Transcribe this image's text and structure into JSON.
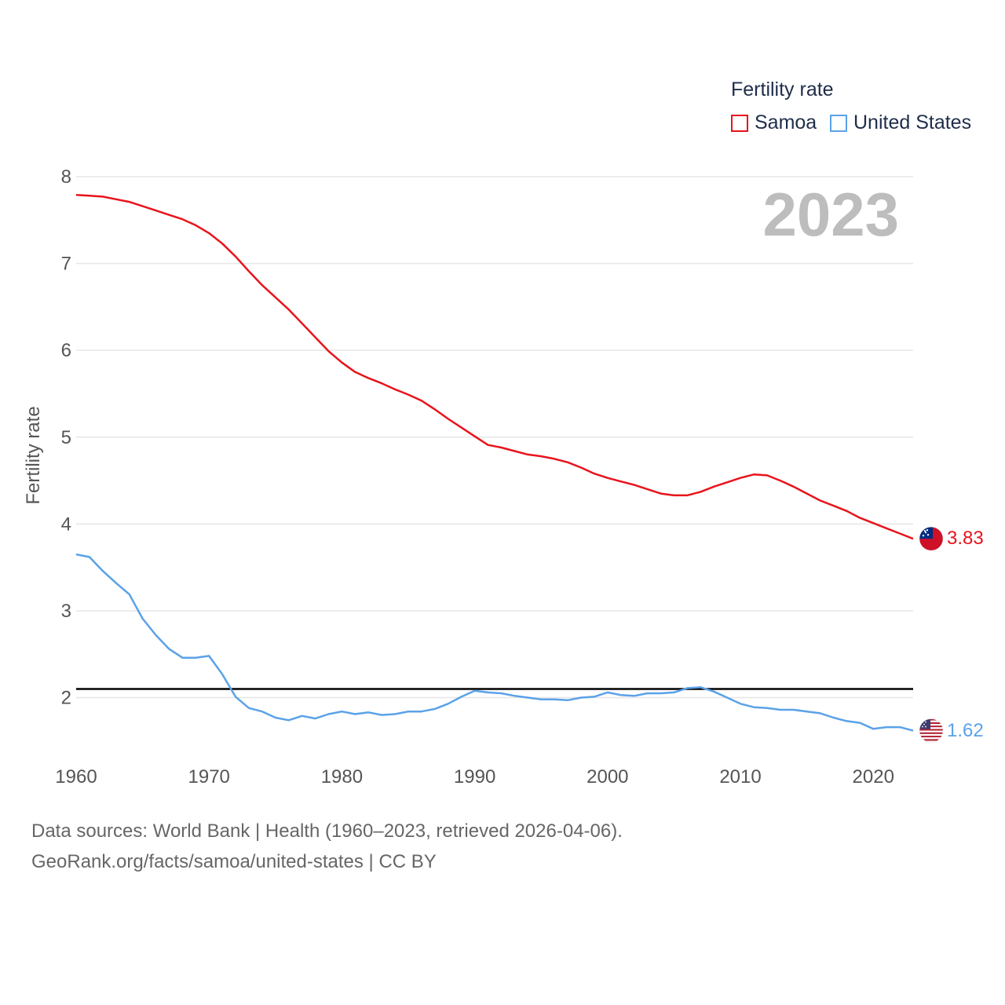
{
  "chart_data": {
    "type": "line",
    "title": "",
    "legend_title": "Fertility rate",
    "legend_position": "top-right",
    "xlabel": "",
    "ylabel": "Fertility rate",
    "xlim": [
      1960,
      2023
    ],
    "ylim": [
      1.2,
      8.0
    ],
    "xticks": [
      1960,
      1970,
      1980,
      1990,
      2000,
      2010,
      2020
    ],
    "yticks": [
      2,
      3,
      4,
      5,
      6,
      7,
      8
    ],
    "grid": true,
    "year_label": "2023",
    "reference_line": {
      "y": 2.1,
      "color": "#000000"
    },
    "x": [
      1960,
      1961,
      1962,
      1963,
      1964,
      1965,
      1966,
      1967,
      1968,
      1969,
      1970,
      1971,
      1972,
      1973,
      1974,
      1975,
      1976,
      1977,
      1978,
      1979,
      1980,
      1981,
      1982,
      1983,
      1984,
      1985,
      1986,
      1987,
      1988,
      1989,
      1990,
      1991,
      1992,
      1993,
      1994,
      1995,
      1996,
      1997,
      1998,
      1999,
      2000,
      2001,
      2002,
      2003,
      2004,
      2005,
      2006,
      2007,
      2008,
      2009,
      2010,
      2011,
      2012,
      2013,
      2014,
      2015,
      2016,
      2017,
      2018,
      2019,
      2020,
      2021,
      2022,
      2023
    ],
    "series": [
      {
        "name": "Samoa",
        "color": "#e8141c",
        "end_label": "3.83",
        "flag": "samoa-flag-icon",
        "values": [
          7.79,
          7.78,
          7.77,
          7.74,
          7.71,
          7.66,
          7.61,
          7.56,
          7.51,
          7.44,
          7.35,
          7.23,
          7.08,
          6.91,
          6.75,
          6.61,
          6.47,
          6.31,
          6.15,
          5.99,
          5.86,
          5.75,
          5.68,
          5.62,
          5.55,
          5.49,
          5.42,
          5.32,
          5.21,
          5.11,
          5.01,
          4.91,
          4.88,
          4.84,
          4.8,
          4.78,
          4.75,
          4.71,
          4.65,
          4.58,
          4.53,
          4.49,
          4.45,
          4.4,
          4.35,
          4.33,
          4.33,
          4.37,
          4.43,
          4.48,
          4.53,
          4.57,
          4.56,
          4.5,
          4.43,
          4.35,
          4.27,
          4.21,
          4.15,
          4.07,
          4.01,
          3.95,
          3.89,
          3.83
        ]
      },
      {
        "name": "United States",
        "color": "#5aa2e8",
        "end_label": "1.62",
        "flag": "us-flag-icon",
        "values": [
          3.65,
          3.62,
          3.46,
          3.32,
          3.19,
          2.91,
          2.72,
          2.56,
          2.46,
          2.46,
          2.48,
          2.27,
          2.01,
          1.88,
          1.84,
          1.77,
          1.74,
          1.79,
          1.76,
          1.81,
          1.84,
          1.81,
          1.83,
          1.8,
          1.81,
          1.84,
          1.84,
          1.87,
          1.93,
          2.01,
          2.08,
          2.06,
          2.05,
          2.02,
          2.0,
          1.98,
          1.98,
          1.97,
          2.0,
          2.01,
          2.06,
          2.03,
          2.02,
          2.05,
          2.05,
          2.06,
          2.11,
          2.12,
          2.07,
          2.0,
          1.93,
          1.89,
          1.88,
          1.86,
          1.86,
          1.84,
          1.82,
          1.77,
          1.73,
          1.71,
          1.64,
          1.66,
          1.66,
          1.62
        ]
      }
    ]
  },
  "footer": {
    "line1": "Data sources: World Bank | Health (1960–2023, retrieved 2026-04-06).",
    "line2": "GeoRank.org/facts/samoa/united-states | CC BY"
  }
}
